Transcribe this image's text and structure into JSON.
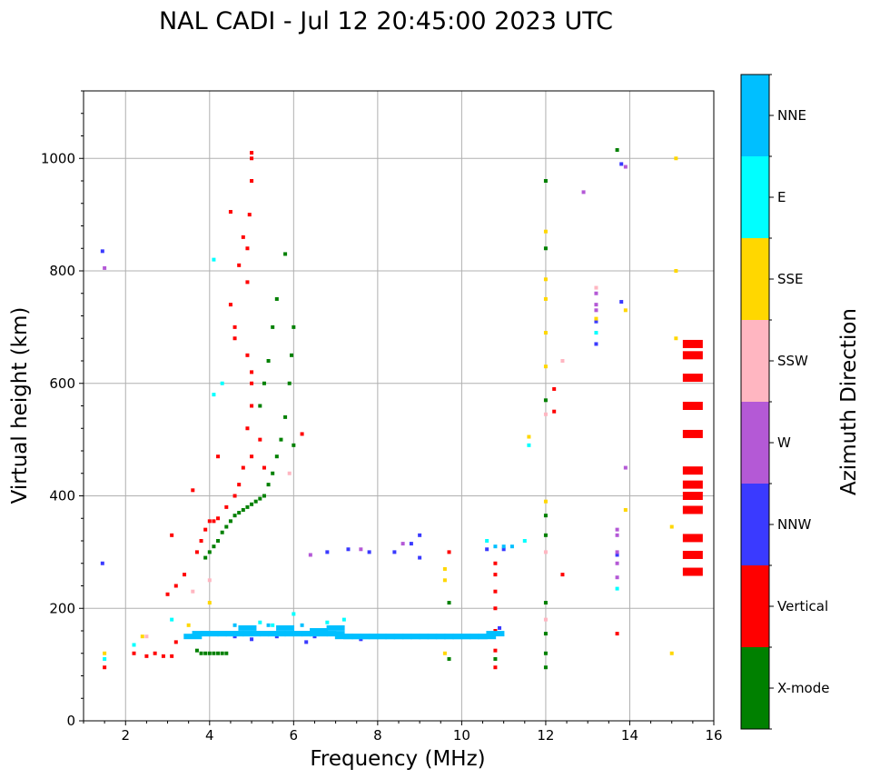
{
  "chart_data": {
    "type": "scatter",
    "title": "NAL CADI - Jul 12 20:45:00 2023 UTC",
    "xlabel": "Frequency (MHz)",
    "ylabel": "Virtual height (km)",
    "xlim": [
      1,
      16
    ],
    "ylim": [
      0,
      1120
    ],
    "xticks": [
      2,
      4,
      6,
      8,
      10,
      12,
      14,
      16
    ],
    "yticks": [
      0,
      200,
      400,
      600,
      800,
      1000
    ],
    "grid": true,
    "colorbar": {
      "label": "Azimuth Direction",
      "categories": [
        {
          "name": "X-mode",
          "color": "#008000"
        },
        {
          "name": "Vertical",
          "color": "#ff0000"
        },
        {
          "name": "NNW",
          "color": "#3a3aff"
        },
        {
          "name": "W",
          "color": "#b459d6"
        },
        {
          "name": "SSW",
          "color": "#ffb6c1"
        },
        {
          "name": "SSE",
          "color": "#ffd700"
        },
        {
          "name": "E",
          "color": "#00ffff"
        },
        {
          "name": "NNE",
          "color": "#00bfff"
        }
      ]
    },
    "series": [
      {
        "name": "X-mode",
        "points": [
          [
            3.8,
            120
          ],
          [
            3.9,
            120
          ],
          [
            4.0,
            120
          ],
          [
            4.1,
            120
          ],
          [
            4.2,
            120
          ],
          [
            4.3,
            120
          ],
          [
            4.4,
            120
          ],
          [
            3.7,
            125
          ],
          [
            3.9,
            290
          ],
          [
            4.0,
            300
          ],
          [
            4.1,
            310
          ],
          [
            4.2,
            320
          ],
          [
            4.3,
            335
          ],
          [
            4.4,
            345
          ],
          [
            4.5,
            355
          ],
          [
            4.6,
            365
          ],
          [
            4.7,
            370
          ],
          [
            4.8,
            375
          ],
          [
            4.9,
            380
          ],
          [
            5.0,
            385
          ],
          [
            5.1,
            390
          ],
          [
            5.2,
            395
          ],
          [
            5.3,
            400
          ],
          [
            5.4,
            420
          ],
          [
            5.5,
            440
          ],
          [
            5.6,
            470
          ],
          [
            5.7,
            500
          ],
          [
            5.8,
            540
          ],
          [
            5.9,
            600
          ],
          [
            5.95,
            650
          ],
          [
            6.0,
            700
          ],
          [
            5.2,
            560
          ],
          [
            5.3,
            600
          ],
          [
            5.4,
            640
          ],
          [
            5.5,
            700
          ],
          [
            5.6,
            750
          ],
          [
            5.8,
            830
          ],
          [
            6.0,
            490
          ],
          [
            9.7,
            110
          ],
          [
            9.7,
            210
          ],
          [
            10.8,
            110
          ],
          [
            12.0,
            95
          ],
          [
            12.0,
            120
          ],
          [
            12.0,
            155
          ],
          [
            12.0,
            210
          ],
          [
            12.0,
            330
          ],
          [
            12.0,
            365
          ],
          [
            12.0,
            570
          ],
          [
            12.0,
            840
          ],
          [
            12.0,
            960
          ],
          [
            13.7,
            1015
          ]
        ]
      },
      {
        "name": "Vertical",
        "points": [
          [
            1.5,
            95
          ],
          [
            2.2,
            120
          ],
          [
            2.5,
            115
          ],
          [
            2.7,
            120
          ],
          [
            2.9,
            115
          ],
          [
            3.1,
            115
          ],
          [
            3.2,
            140
          ],
          [
            3.0,
            225
          ],
          [
            3.2,
            240
          ],
          [
            3.4,
            260
          ],
          [
            3.1,
            330
          ],
          [
            3.7,
            300
          ],
          [
            3.8,
            320
          ],
          [
            3.9,
            340
          ],
          [
            4.0,
            355
          ],
          [
            4.1,
            355
          ],
          [
            4.2,
            360
          ],
          [
            4.4,
            380
          ],
          [
            4.6,
            400
          ],
          [
            4.7,
            420
          ],
          [
            4.8,
            450
          ],
          [
            5.0,
            470
          ],
          [
            4.2,
            470
          ],
          [
            3.6,
            410
          ],
          [
            4.9,
            520
          ],
          [
            5.0,
            560
          ],
          [
            5.0,
            600
          ],
          [
            5.0,
            620
          ],
          [
            4.9,
            650
          ],
          [
            4.6,
            680
          ],
          [
            4.6,
            700
          ],
          [
            4.5,
            740
          ],
          [
            4.9,
            780
          ],
          [
            4.9,
            840
          ],
          [
            4.95,
            900
          ],
          [
            5.0,
            960
          ],
          [
            5.0,
            1000
          ],
          [
            5.0,
            1010
          ],
          [
            4.7,
            810
          ],
          [
            4.5,
            905
          ],
          [
            4.8,
            860
          ],
          [
            5.3,
            450
          ],
          [
            5.2,
            500
          ],
          [
            6.2,
            510
          ],
          [
            10.8,
            95
          ],
          [
            10.8,
            125
          ],
          [
            10.8,
            160
          ],
          [
            10.8,
            200
          ],
          [
            10.8,
            230
          ],
          [
            10.8,
            260
          ],
          [
            10.8,
            280
          ],
          [
            9.7,
            300
          ],
          [
            12.2,
            550
          ],
          [
            12.2,
            590
          ],
          [
            12.4,
            260
          ],
          [
            13.7,
            155
          ],
          [
            15.5,
            265
          ],
          [
            15.5,
            295
          ],
          [
            15.5,
            325
          ],
          [
            15.5,
            375
          ],
          [
            15.5,
            400
          ],
          [
            15.5,
            420
          ],
          [
            15.5,
            445
          ],
          [
            15.5,
            510
          ],
          [
            15.5,
            560
          ],
          [
            15.5,
            610
          ],
          [
            15.5,
            650
          ],
          [
            15.5,
            670
          ]
        ]
      },
      {
        "name": "NNW",
        "points": [
          [
            1.45,
            280
          ],
          [
            1.45,
            835
          ],
          [
            4.6,
            150
          ],
          [
            5.0,
            145
          ],
          [
            5.6,
            150
          ],
          [
            6.3,
            140
          ],
          [
            6.5,
            150
          ],
          [
            7.6,
            145
          ],
          [
            6.8,
            300
          ],
          [
            7.3,
            305
          ],
          [
            7.8,
            300
          ],
          [
            8.4,
            300
          ],
          [
            8.8,
            315
          ],
          [
            9.0,
            330
          ],
          [
            9.0,
            290
          ],
          [
            10.6,
            305
          ],
          [
            11.0,
            305
          ],
          [
            10.9,
            165
          ],
          [
            13.2,
            670
          ],
          [
            13.2,
            710
          ],
          [
            13.8,
            745
          ],
          [
            13.8,
            990
          ],
          [
            13.7,
            295
          ]
        ]
      },
      {
        "name": "W",
        "points": [
          [
            1.5,
            805
          ],
          [
            6.4,
            295
          ],
          [
            7.6,
            305
          ],
          [
            8.6,
            315
          ],
          [
            12.9,
            940
          ],
          [
            13.2,
            740
          ],
          [
            13.2,
            730
          ],
          [
            13.2,
            760
          ],
          [
            13.7,
            340
          ],
          [
            13.7,
            330
          ],
          [
            13.7,
            300
          ],
          [
            13.7,
            280
          ],
          [
            13.7,
            255
          ],
          [
            13.9,
            985
          ],
          [
            13.9,
            450
          ]
        ]
      },
      {
        "name": "SSW",
        "points": [
          [
            2.5,
            150
          ],
          [
            3.6,
            230
          ],
          [
            4.0,
            250
          ],
          [
            5.9,
            440
          ],
          [
            12.0,
            545
          ],
          [
            12.0,
            300
          ],
          [
            12.0,
            180
          ],
          [
            12.4,
            640
          ],
          [
            13.2,
            770
          ]
        ]
      },
      {
        "name": "SSE",
        "points": [
          [
            1.5,
            120
          ],
          [
            2.4,
            150
          ],
          [
            3.5,
            170
          ],
          [
            4.0,
            210
          ],
          [
            9.6,
            270
          ],
          [
            9.6,
            250
          ],
          [
            9.6,
            120
          ],
          [
            11.6,
            505
          ],
          [
            12.0,
            390
          ],
          [
            12.0,
            630
          ],
          [
            12.0,
            690
          ],
          [
            12.0,
            750
          ],
          [
            12.0,
            785
          ],
          [
            12.0,
            870
          ],
          [
            13.2,
            715
          ],
          [
            13.9,
            730
          ],
          [
            13.9,
            375
          ],
          [
            15.0,
            120
          ],
          [
            15.0,
            345
          ],
          [
            15.1,
            680
          ],
          [
            15.1,
            800
          ],
          [
            15.1,
            1000
          ]
        ]
      },
      {
        "name": "E",
        "points": [
          [
            1.5,
            110
          ],
          [
            2.2,
            135
          ],
          [
            3.1,
            180
          ],
          [
            4.1,
            580
          ],
          [
            4.1,
            820
          ],
          [
            4.3,
            600
          ],
          [
            5.2,
            175
          ],
          [
            5.5,
            170
          ],
          [
            6.0,
            190
          ],
          [
            6.8,
            175
          ],
          [
            7.2,
            180
          ],
          [
            10.6,
            320
          ],
          [
            11.5,
            320
          ],
          [
            11.6,
            490
          ],
          [
            13.2,
            690
          ],
          [
            13.7,
            235
          ]
        ]
      },
      {
        "name": "NNE",
        "points": [
          [
            3.6,
            150
          ],
          [
            3.8,
            155
          ],
          [
            4.0,
            155
          ],
          [
            4.2,
            155
          ],
          [
            4.4,
            155
          ],
          [
            4.6,
            155
          ],
          [
            4.8,
            155
          ],
          [
            5.0,
            155
          ],
          [
            5.2,
            155
          ],
          [
            5.4,
            155
          ],
          [
            5.6,
            155
          ],
          [
            5.8,
            155
          ],
          [
            6.0,
            155
          ],
          [
            6.2,
            155
          ],
          [
            6.4,
            155
          ],
          [
            6.6,
            155
          ],
          [
            6.8,
            155
          ],
          [
            7.0,
            155
          ],
          [
            7.2,
            150
          ],
          [
            7.4,
            150
          ],
          [
            7.6,
            150
          ],
          [
            7.8,
            150
          ],
          [
            8.0,
            150
          ],
          [
            8.2,
            150
          ],
          [
            8.4,
            150
          ],
          [
            8.6,
            150
          ],
          [
            8.8,
            150
          ],
          [
            9.0,
            150
          ],
          [
            9.2,
            150
          ],
          [
            9.4,
            150
          ],
          [
            9.6,
            150
          ],
          [
            9.8,
            150
          ],
          [
            10.0,
            150
          ],
          [
            10.2,
            150
          ],
          [
            10.4,
            150
          ],
          [
            10.6,
            150
          ],
          [
            10.8,
            155
          ],
          [
            5.4,
            170
          ],
          [
            5.8,
            165
          ],
          [
            6.2,
            170
          ],
          [
            6.6,
            160
          ],
          [
            7.0,
            165
          ],
          [
            4.6,
            170
          ],
          [
            4.9,
            165
          ],
          [
            10.8,
            310
          ],
          [
            11.2,
            310
          ],
          [
            11.0,
            310
          ]
        ]
      }
    ]
  }
}
